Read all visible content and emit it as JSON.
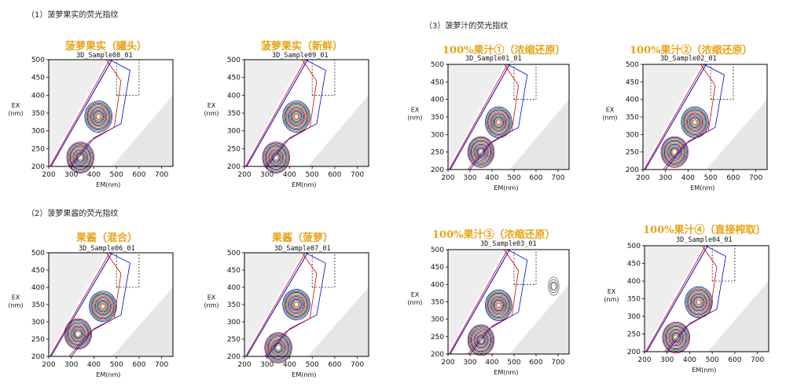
{
  "sections": {
    "s1": "（1）菠萝果实的荧光指纹",
    "s2": "（2）菠萝果酱的荧光指纹",
    "s3": "（3）菠萝汁的荧光指纹"
  },
  "axes": {
    "ex_label": "EX",
    "ex_unit": "(nm)",
    "em_label": "EM(nm)"
  },
  "colors": {
    "title": "#e8a317",
    "scatter_region": "#e6e6e6",
    "contours": [
      "#d00000",
      "#0000d0",
      "#00a000",
      "#a000a0",
      "#000000",
      "#008080",
      "#d06000"
    ]
  },
  "chart_data": [
    {
      "type": "contour",
      "id": "p1",
      "title": "菠萝果实（罐头）",
      "sample": "3D_Sample08_01",
      "xlabel": "EM(nm)",
      "ylabel": "EX (nm)",
      "xlim": [
        200,
        750
      ],
      "ylim": [
        200,
        500
      ],
      "xticks": [
        200,
        300,
        400,
        500,
        600,
        700
      ],
      "yticks": [
        200,
        250,
        300,
        350,
        400,
        450,
        500
      ],
      "dashed_markers": {
        "em": [
          500,
          600
        ],
        "ex": [
          400,
          500
        ]
      },
      "peaks": [
        {
          "em": 340,
          "ex": 225
        },
        {
          "em": 420,
          "ex": 340
        }
      ]
    },
    {
      "type": "contour",
      "id": "p2",
      "title": "菠萝果实（新鲜）",
      "sample": "3D_Sample09_01",
      "xlabel": "EM(nm)",
      "ylabel": "EX (nm)",
      "xlim": [
        200,
        750
      ],
      "ylim": [
        200,
        500
      ],
      "xticks": [
        200,
        300,
        400,
        500,
        600,
        700
      ],
      "yticks": [
        200,
        250,
        300,
        350,
        400,
        450,
        500
      ],
      "dashed_markers": {
        "em": [
          500,
          600
        ],
        "ex": [
          400,
          500
        ]
      },
      "peaks": [
        {
          "em": 340,
          "ex": 225
        },
        {
          "em": 430,
          "ex": 340
        }
      ]
    },
    {
      "type": "contour",
      "id": "p3",
      "title": "果酱（混合）",
      "sample": "3D_Sample06_01",
      "xlabel": "EM(nm)",
      "ylabel": "EX (nm)",
      "xlim": [
        200,
        750
      ],
      "ylim": [
        200,
        500
      ],
      "xticks": [
        200,
        300,
        400,
        500,
        600,
        700
      ],
      "yticks": [
        200,
        250,
        300,
        350,
        400,
        450,
        500
      ],
      "dashed_markers": {
        "em": [
          500,
          600
        ],
        "ex": [
          400,
          500
        ]
      },
      "peaks": [
        {
          "em": 330,
          "ex": 265
        },
        {
          "em": 440,
          "ex": 345
        }
      ]
    },
    {
      "type": "contour",
      "id": "p4",
      "title": "果酱（菠萝）",
      "sample": "3D_Sample07_01",
      "xlabel": "EM(nm)",
      "ylabel": "EX (nm)",
      "xlim": [
        200,
        750
      ],
      "ylim": [
        200,
        500
      ],
      "xticks": [
        200,
        300,
        400,
        500,
        600,
        700
      ],
      "yticks": [
        200,
        250,
        300,
        350,
        400,
        450,
        500
      ],
      "dashed_markers": {
        "em": [
          500,
          600
        ],
        "ex": [
          400,
          500
        ]
      },
      "peaks": [
        {
          "em": 350,
          "ex": 225
        },
        {
          "em": 430,
          "ex": 350
        }
      ]
    },
    {
      "type": "contour",
      "id": "p5",
      "title": "100%果汁①（浓缩还原）",
      "sample": "3D_Sample01_01",
      "xlabel": "EM(nm)",
      "ylabel": "EX (nm)",
      "xlim": [
        200,
        750
      ],
      "ylim": [
        200,
        500
      ],
      "xticks": [
        200,
        300,
        400,
        500,
        600,
        700
      ],
      "yticks": [
        200,
        250,
        300,
        350,
        400,
        450,
        500
      ],
      "dashed_markers": {
        "em": [
          500,
          600
        ],
        "ex": [
          400,
          500
        ]
      },
      "peaks": [
        {
          "em": 350,
          "ex": 250
        },
        {
          "em": 430,
          "ex": 335
        }
      ]
    },
    {
      "type": "contour",
      "id": "p6",
      "title": "100%果汁②（浓缩还原）",
      "sample": "3D_Sample02_01",
      "xlabel": "EM(nm)",
      "ylabel": "EX (nm)",
      "xlim": [
        200,
        750
      ],
      "ylim": [
        200,
        500
      ],
      "xticks": [
        200,
        300,
        400,
        500,
        600,
        700
      ],
      "yticks": [
        200,
        250,
        300,
        350,
        400,
        450,
        500
      ],
      "dashed_markers": {
        "em": [
          500,
          600
        ],
        "ex": [
          400,
          500
        ]
      },
      "peaks": [
        {
          "em": 340,
          "ex": 250
        },
        {
          "em": 430,
          "ex": 335
        }
      ]
    },
    {
      "type": "contour",
      "id": "p7",
      "title": "100%果汁③（浓缩还原）",
      "sample": "3D_Sample03_01",
      "xlabel": "EM(nm)",
      "ylabel": "EX (nm)",
      "xlim": [
        200,
        750
      ],
      "ylim": [
        200,
        500
      ],
      "xticks": [
        200,
        300,
        400,
        500,
        600,
        700
      ],
      "yticks": [
        200,
        250,
        300,
        350,
        400,
        450,
        500
      ],
      "dashed_markers": {
        "em": [
          500,
          600
        ],
        "ex": [
          400,
          500
        ]
      },
      "peaks": [
        {
          "em": 350,
          "ex": 240
        },
        {
          "em": 430,
          "ex": 340
        },
        {
          "em": 680,
          "ex": 395
        }
      ]
    },
    {
      "type": "contour",
      "id": "p8",
      "title": "100%果汁④（直接榨取）",
      "sample": "3D_Sample04_01",
      "xlabel": "EM(nm)",
      "ylabel": "EX (nm)",
      "xlim": [
        200,
        750
      ],
      "ylim": [
        200,
        500
      ],
      "xticks": [
        200,
        300,
        400,
        500,
        600,
        700
      ],
      "yticks": [
        200,
        250,
        300,
        350,
        400,
        450,
        500
      ],
      "dashed_markers": {
        "em": [
          500,
          600
        ],
        "ex": [
          400,
          500
        ]
      },
      "peaks": [
        {
          "em": 340,
          "ex": 240
        },
        {
          "em": 440,
          "ex": 340
        }
      ]
    }
  ]
}
